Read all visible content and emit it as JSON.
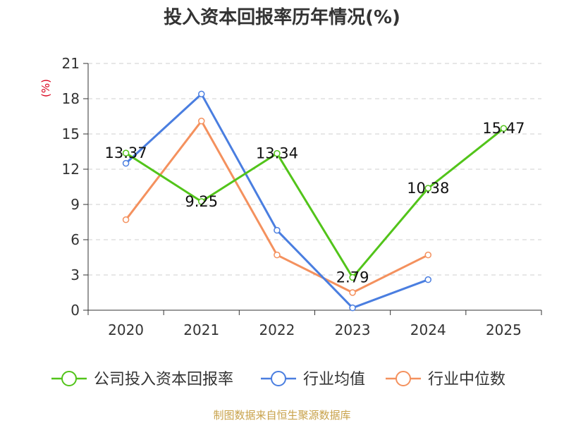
{
  "chart_data": {
    "type": "line",
    "title": "投入资本回报率历年情况(%)",
    "ylabel": "(%)",
    "xlabel": "",
    "categories": [
      "2020",
      "2021",
      "2022",
      "2023",
      "2024",
      "2025"
    ],
    "ylim": [
      0,
      21
    ],
    "yticks": [
      0,
      3,
      6,
      9,
      12,
      15,
      18,
      21
    ],
    "grid": true,
    "legend_position": "bottom",
    "series": [
      {
        "name": "公司投入资本回报率",
        "color": "#52c41a",
        "values": [
          13.37,
          9.25,
          13.34,
          2.79,
          10.38,
          15.47
        ],
        "labels": [
          "13.37",
          "9.25",
          "13.34",
          "2.79",
          "10.38",
          "15.47"
        ]
      },
      {
        "name": "行业均值",
        "color": "#4a7ee0",
        "values": [
          12.5,
          18.4,
          6.8,
          0.2,
          2.6,
          null
        ]
      },
      {
        "name": "行业中位数",
        "color": "#f4915e",
        "values": [
          7.7,
          16.1,
          4.7,
          1.5,
          4.7,
          null
        ]
      }
    ]
  },
  "source_text": "制图数据来自恒生聚源数据库"
}
